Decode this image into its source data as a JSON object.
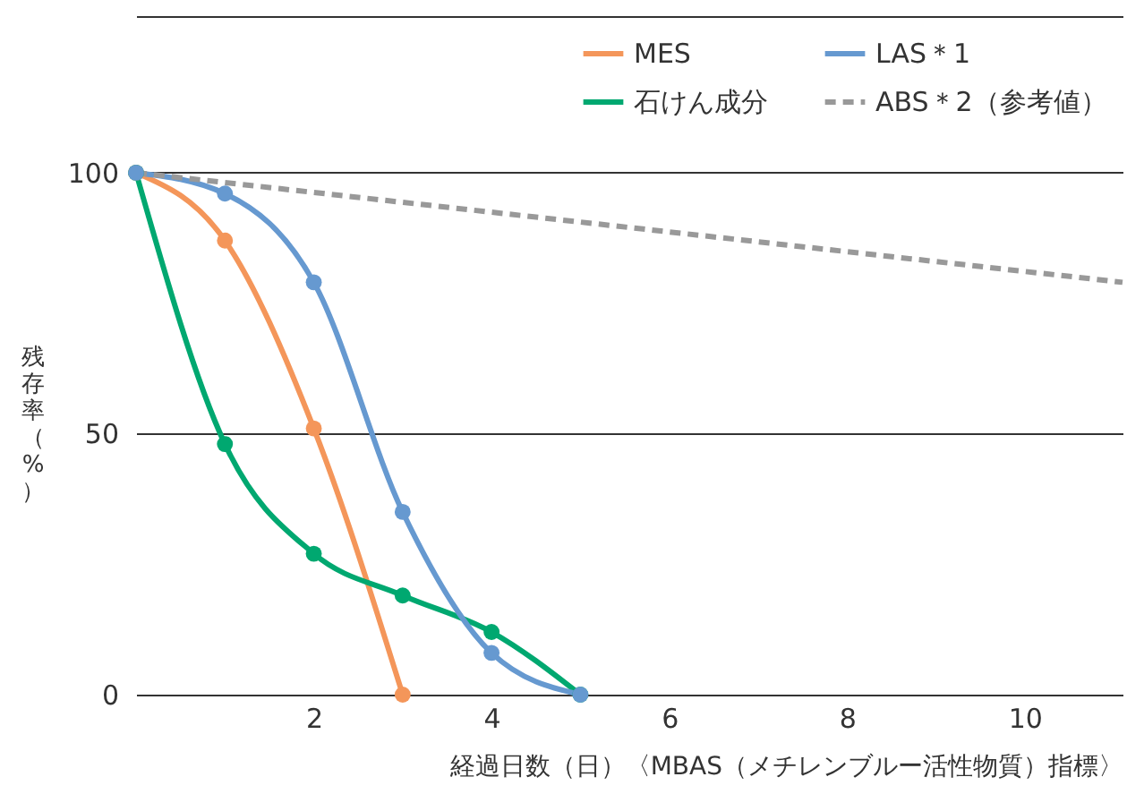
{
  "chart_data": {
    "type": "line",
    "xlabel": "経過日数（日）〈MBAS（メチレンブルー活性物質）指標〉",
    "ylabel": "残存率（%）",
    "xlim": [
      0,
      11.1
    ],
    "ylim": [
      0,
      130
    ],
    "xticks": [
      2,
      4,
      6,
      8,
      10
    ],
    "yticks": [
      0,
      50,
      100
    ],
    "grid": "y",
    "legend": "top right",
    "marker": "circle",
    "series": [
      {
        "name": "MES",
        "color": "#f4965a",
        "x": [
          0,
          1,
          2,
          3
        ],
        "values": [
          100,
          87,
          51,
          0
        ]
      },
      {
        "name": "石けん成分",
        "color": "#00a870",
        "x": [
          0,
          1,
          2,
          3,
          4,
          5
        ],
        "values": [
          100,
          48,
          27,
          19,
          12,
          0
        ]
      },
      {
        "name": "LAS＊1",
        "color": "#6699d0",
        "x": [
          0,
          1,
          2,
          3,
          4,
          5
        ],
        "values": [
          100,
          96,
          79,
          35,
          8,
          0
        ]
      },
      {
        "name": "ABS＊2（参考値）",
        "color": "#999999",
        "x": [
          0,
          11.1
        ],
        "values": [
          100,
          79
        ],
        "line_style": "dashed",
        "marker": "none"
      }
    ]
  }
}
